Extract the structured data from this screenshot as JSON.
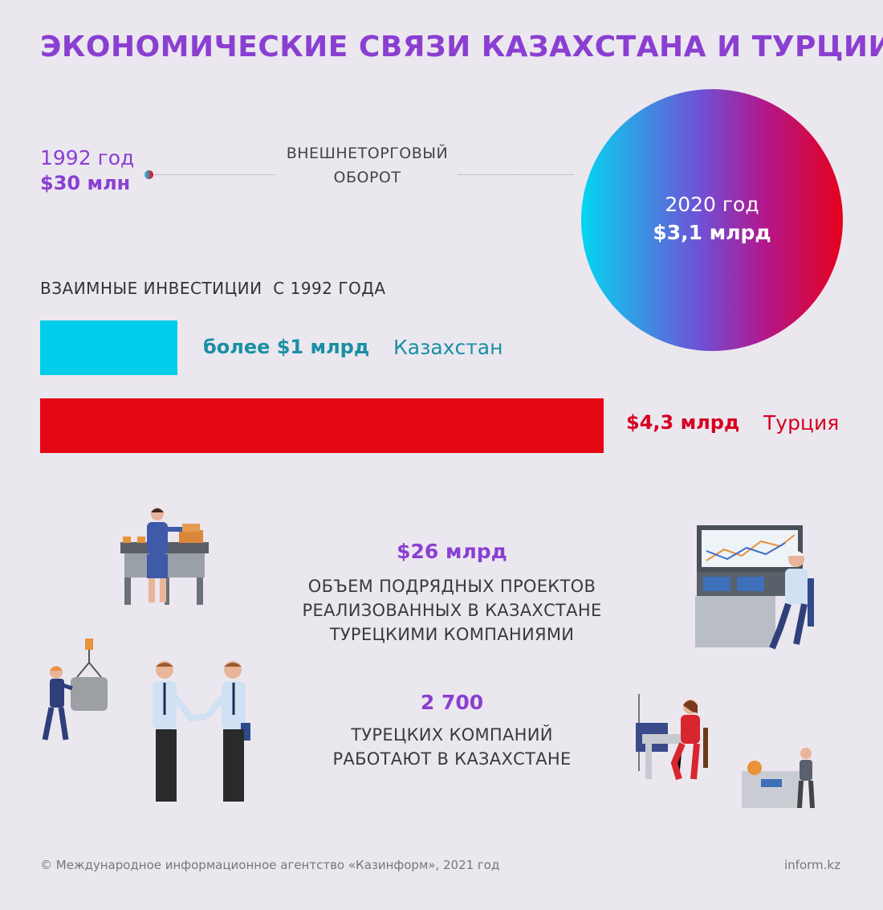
{
  "title": "ЭКОНОМИЧЕСКИЕ СВЯЗИ КАЗАХСТАНА И ТУРЦИИ",
  "trade": {
    "start_year": "1992 год",
    "start_value": "$30 млн",
    "label_line1": "ВНЕШНЕТОРГОВЫЙ",
    "label_line2": "ОБОРОТ",
    "end_year": "2020 год",
    "end_value": "$3,1 млрд"
  },
  "investments": {
    "title": "ВЗАИМНЫЕ ИНВЕСТИЦИИ  С 1992 ГОДА",
    "kazakhstan": {
      "value": "более $1 млрд",
      "name": "Казахстан",
      "color": "#00cdea"
    },
    "turkey": {
      "value": "$4,3 млрд",
      "name": "Турция",
      "color": "#e30613"
    }
  },
  "contracts": {
    "value": "$26 млрд",
    "line1": "ОБЪЕМ ПОДРЯДНЫХ ПРОЕКТОВ",
    "line2": "РЕАЛИЗОВАННЫХ В КАЗАХСТАНЕ",
    "line3": "ТУРЕЦКИМИ КОМПАНИЯМИ"
  },
  "companies": {
    "value": "2 700",
    "line1": "ТУРЕЦКИХ КОМПАНИЙ",
    "line2": "РАБОТАЮТ В КАЗАХСТАНЕ"
  },
  "footer": {
    "copyright": "© Международное информационное агентство «Казинформ», 2021 год",
    "site": "inform.kz"
  },
  "colors": {
    "accent": "#8a3fd1",
    "kazakhstan": "#00cdea",
    "turkey": "#e30613"
  }
}
